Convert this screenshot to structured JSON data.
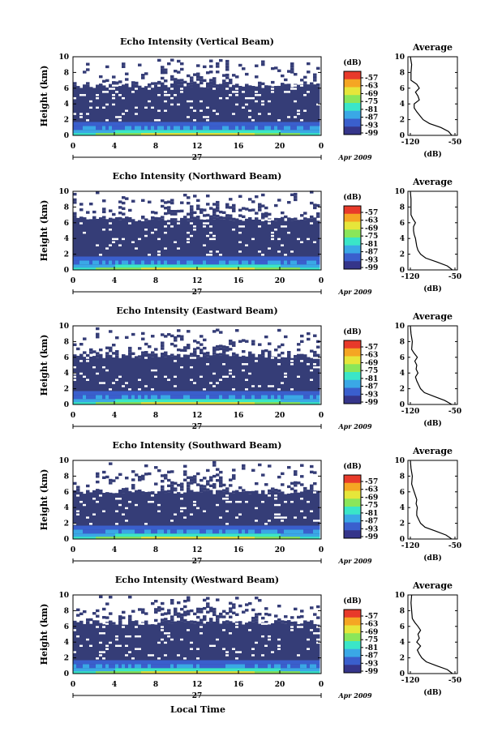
{
  "figure": {
    "x_axis_label": "Local Time",
    "x_ticks": [
      "0",
      "4",
      "8",
      "12",
      "16",
      "20",
      "0"
    ],
    "day_label": "27",
    "date_label": "Apr 2009",
    "y_axis_label": "Height (km)",
    "y_ticks": [
      "0",
      "2",
      "4",
      "6",
      "8",
      "10"
    ],
    "colorbar_unit": "(dB)",
    "colorbar_ticks": [
      "-57",
      "-63",
      "-69",
      "-75",
      "-81",
      "-87",
      "-93",
      "-99"
    ],
    "colors": {
      "background_level": "#353d77",
      "colormap": [
        "#35358a",
        "#3a5fcd",
        "#3aa8e6",
        "#3ae6c8",
        "#8ae65a",
        "#e6e63a",
        "#f5a623",
        "#e83a2a"
      ]
    },
    "average_title": "Average",
    "average_unit": "(dB)",
    "average_x_ticks": [
      "-120",
      "-50"
    ],
    "average_y_ticks": [
      "0",
      "2",
      "4",
      "6",
      "8",
      "10"
    ]
  },
  "chart_data": [
    {
      "type": "heatmap",
      "title": "Echo Intensity (Vertical Beam)",
      "xlabel": "",
      "ylabel": "Height (km)",
      "xlim": [
        0,
        24
      ],
      "ylim": [
        0,
        10
      ],
      "colorbar": {
        "label": "(dB)",
        "ticks": [
          -57,
          -63,
          -69,
          -75,
          -81,
          -87,
          -93,
          -99
        ]
      },
      "cloud_layer_km": [
        6.3,
        9.5
      ],
      "average_profile": {
        "title": "Average",
        "xlabel": "(dB)",
        "xlim": [
          -120,
          -50
        ],
        "height_km": [
          0,
          0.5,
          1,
          1.5,
          2,
          2.5,
          3,
          3.5,
          4,
          4.5,
          5,
          5.5,
          6,
          6.5,
          7,
          8,
          9,
          10
        ],
        "value_db": [
          -55,
          -60,
          -72,
          -90,
          -100,
          -105,
          -110,
          -114,
          -114,
          -106,
          -108,
          -112,
          -106,
          -110,
          -119,
          -119,
          -118,
          -120
        ]
      }
    },
    {
      "type": "heatmap",
      "title": "Echo Intensity (Northward Beam)",
      "xlabel": "",
      "ylabel": "Height (km)",
      "xlim": [
        0,
        24
      ],
      "ylim": [
        0,
        10
      ],
      "colorbar": {
        "label": "(dB)",
        "ticks": [
          -57,
          -63,
          -69,
          -75,
          -81,
          -87,
          -93,
          -99
        ]
      },
      "cloud_layer_km": [
        6.5,
        9.8
      ],
      "average_profile": {
        "title": "Average",
        "xlabel": "(dB)",
        "xlim": [
          -120,
          -50
        ],
        "height_km": [
          0,
          0.5,
          1,
          1.5,
          2,
          2.5,
          3,
          3.5,
          4,
          4.5,
          5,
          5.5,
          6,
          6.5,
          7,
          8,
          9,
          10
        ],
        "value_db": [
          -54,
          -62,
          -78,
          -96,
          -104,
          -108,
          -110,
          -111,
          -112,
          -114,
          -115,
          -115,
          -112,
          -116,
          -119,
          -119,
          -119,
          -120
        ]
      }
    },
    {
      "type": "heatmap",
      "title": "Echo Intensity (Eastward Beam)",
      "xlabel": "",
      "ylabel": "Height (km)",
      "xlim": [
        0,
        24
      ],
      "ylim": [
        0,
        10
      ],
      "colorbar": {
        "label": "(dB)",
        "ticks": [
          -57,
          -63,
          -69,
          -75,
          -81,
          -87,
          -93,
          -99
        ]
      },
      "cloud_layer_km": [
        6.2,
        9.5
      ],
      "average_profile": {
        "title": "Average",
        "xlabel": "(dB)",
        "xlim": [
          -120,
          -50
        ],
        "height_km": [
          0,
          0.5,
          1,
          1.5,
          2,
          2.5,
          3,
          3.5,
          4,
          4.5,
          5,
          5.5,
          6,
          6.5,
          7,
          8,
          9,
          10
        ],
        "value_db": [
          -55,
          -66,
          -82,
          -98,
          -104,
          -107,
          -110,
          -112,
          -108,
          -111,
          -110,
          -113,
          -109,
          -114,
          -118,
          -117,
          -119,
          -120
        ]
      }
    },
    {
      "type": "heatmap",
      "title": "Echo Intensity (Southward Beam)",
      "xlabel": "",
      "ylabel": "Height (km)",
      "xlim": [
        0,
        24
      ],
      "ylim": [
        0,
        10
      ],
      "colorbar": {
        "label": "(dB)",
        "ticks": [
          -57,
          -63,
          -69,
          -75,
          -81,
          -87,
          -93,
          -99
        ]
      },
      "cloud_layer_km": [
        6.0,
        9.6
      ],
      "average_profile": {
        "title": "Average",
        "xlabel": "(dB)",
        "xlim": [
          -120,
          -50
        ],
        "height_km": [
          0,
          0.5,
          1,
          1.5,
          2,
          2.5,
          3,
          3.5,
          4,
          4.5,
          5,
          5.5,
          6,
          6.5,
          7,
          8,
          9,
          10
        ],
        "value_db": [
          -55,
          -64,
          -80,
          -97,
          -104,
          -107,
          -110,
          -110,
          -109,
          -111,
          -110,
          -112,
          -114,
          -116,
          -118,
          -117,
          -119,
          -120
        ]
      }
    },
    {
      "type": "heatmap",
      "title": "Echo Intensity (Westward Beam)",
      "xlabel": "Local Time",
      "ylabel": "Height (km)",
      "xlim": [
        0,
        24
      ],
      "ylim": [
        0,
        10
      ],
      "colorbar": {
        "label": "(dB)",
        "ticks": [
          -57,
          -63,
          -69,
          -75,
          -81,
          -87,
          -93,
          -99
        ]
      },
      "cloud_layer_km": [
        6.5,
        9.8
      ],
      "average_profile": {
        "title": "Average",
        "xlabel": "(dB)",
        "xlim": [
          -120,
          -50
        ],
        "height_km": [
          0,
          0.5,
          1,
          1.5,
          2,
          2.5,
          3,
          3.5,
          4,
          4.5,
          5,
          5.5,
          6,
          6.5,
          7,
          8,
          9,
          10
        ],
        "value_db": [
          -54,
          -62,
          -79,
          -95,
          -102,
          -106,
          -109,
          -104,
          -110,
          -106,
          -108,
          -104,
          -108,
          -113,
          -117,
          -118,
          -119,
          -118
        ]
      }
    }
  ]
}
